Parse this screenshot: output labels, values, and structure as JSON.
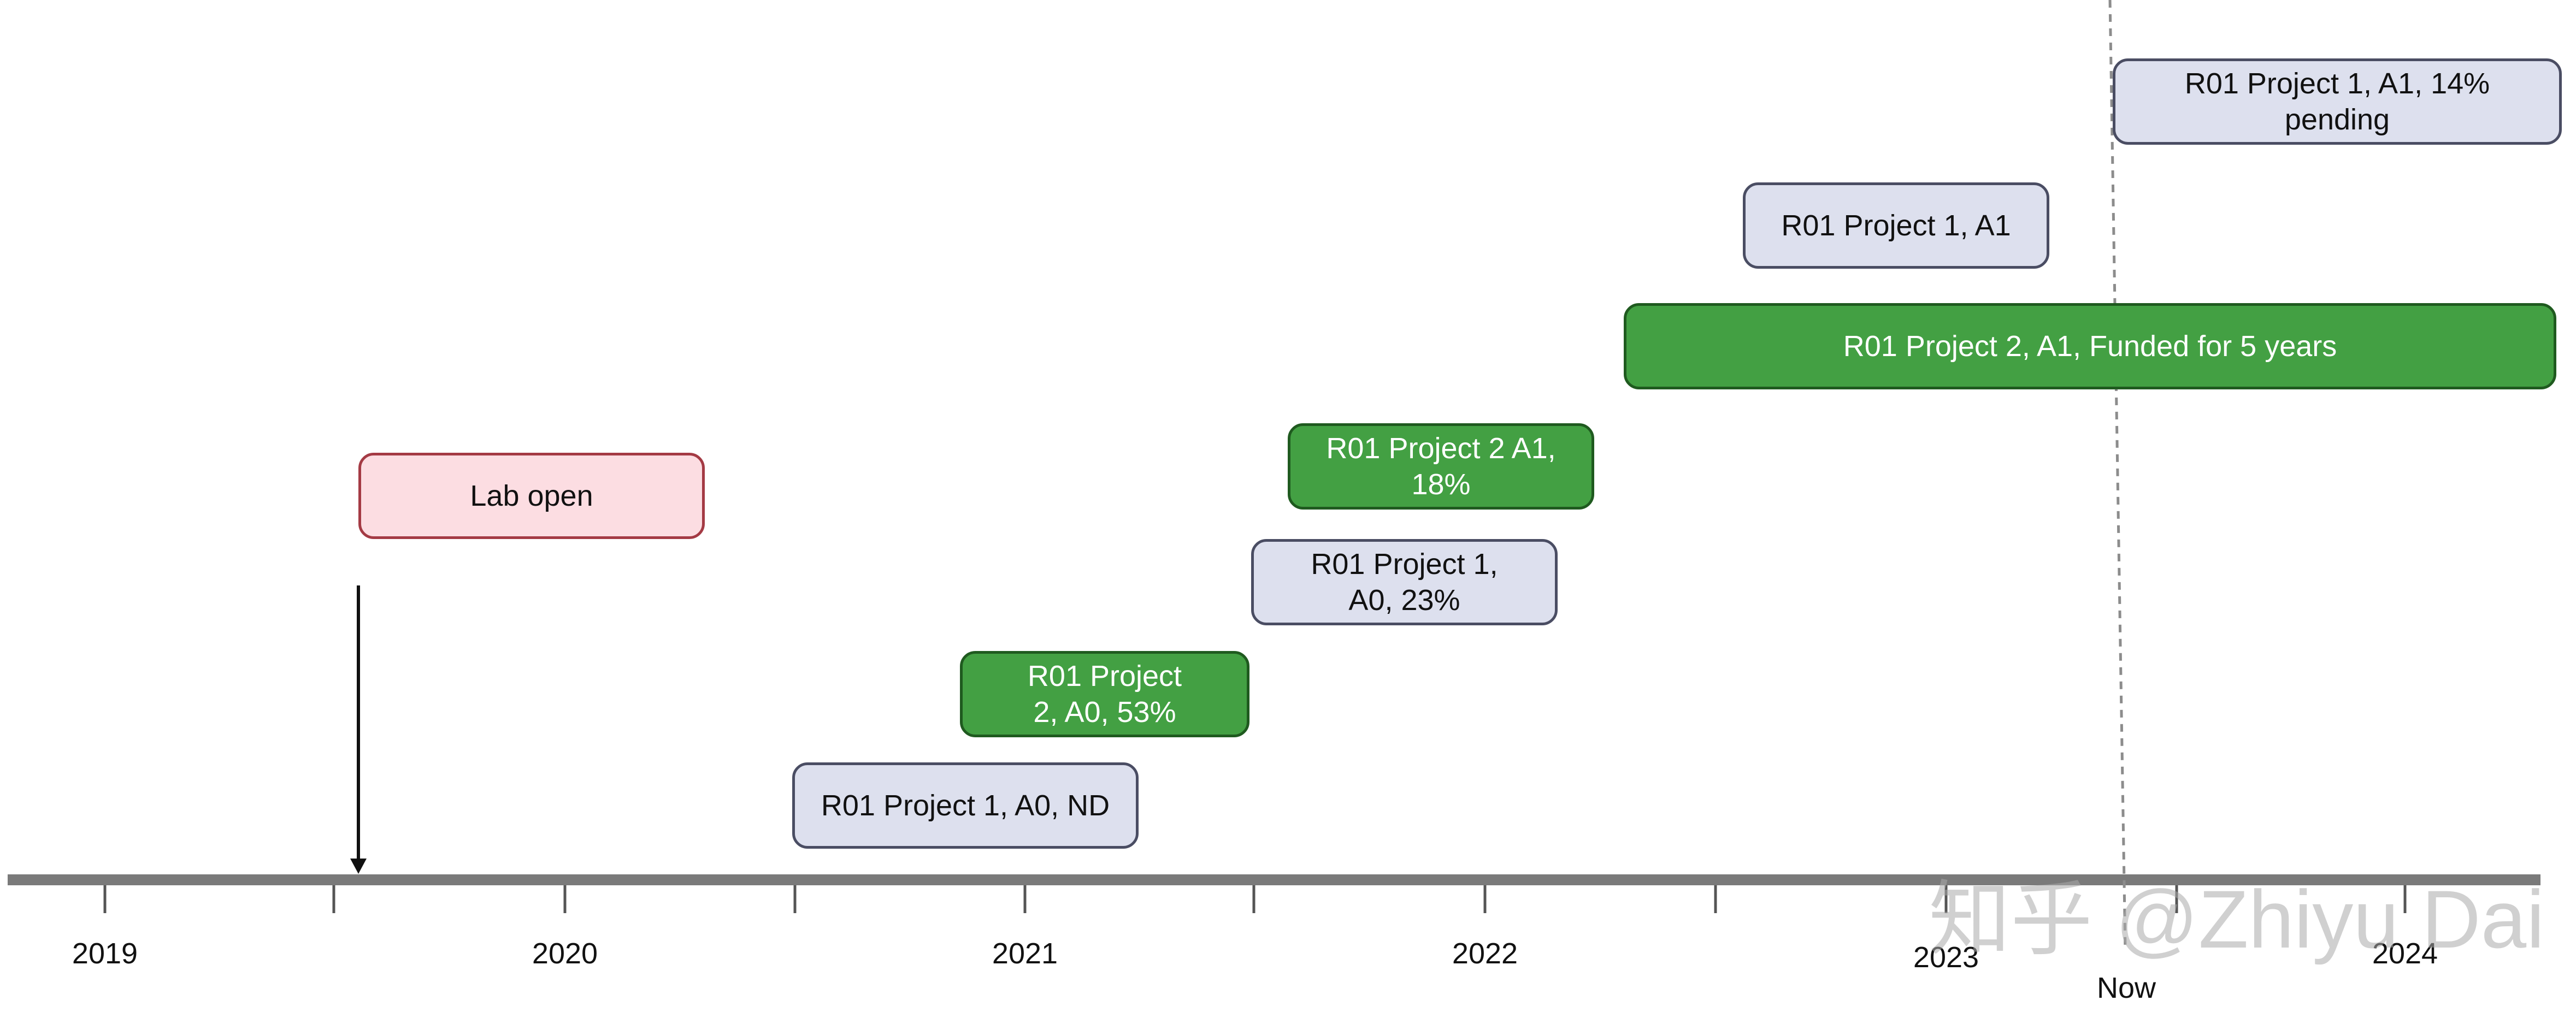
{
  "timeline": {
    "years": [
      "2019",
      "2020",
      "2021",
      "2022",
      "2023",
      "2024"
    ],
    "now_label": "Now"
  },
  "events": [
    {
      "id": "lab-open",
      "text": "Lab open",
      "style": "pink"
    },
    {
      "id": "r01-p1-a0-nd",
      "text": "R01 Project 1, A0, ND",
      "style": "grey"
    },
    {
      "id": "r01-p2-a0",
      "text": "R01 Project 2, A0, 53%",
      "style": "green"
    },
    {
      "id": "r01-p1-a0",
      "text": "R01 Project 1, A0, 23%",
      "style": "grey"
    },
    {
      "id": "r01-p2-a1-18",
      "text": "R01 Project 2 A1, 18%",
      "style": "green"
    },
    {
      "id": "r01-p2-a1-funded",
      "text": "R01 Project 2, A1, Funded for 5 years",
      "style": "green"
    },
    {
      "id": "r01-p1-a1",
      "text": "R01 Project 1, A1",
      "style": "grey"
    },
    {
      "id": "r01-p1-a1-pending",
      "text": "R01 Project 1, A1, 14% pending",
      "style": "grey"
    }
  ],
  "watermark": "知乎 @Zhiyu Dai",
  "colors": {
    "axis": "#7a7a7a",
    "grey_fill": "#dde0ee",
    "green_fill": "#43a043",
    "pink_fill": "#fcdde2",
    "now_line": "#8c8c8c"
  }
}
